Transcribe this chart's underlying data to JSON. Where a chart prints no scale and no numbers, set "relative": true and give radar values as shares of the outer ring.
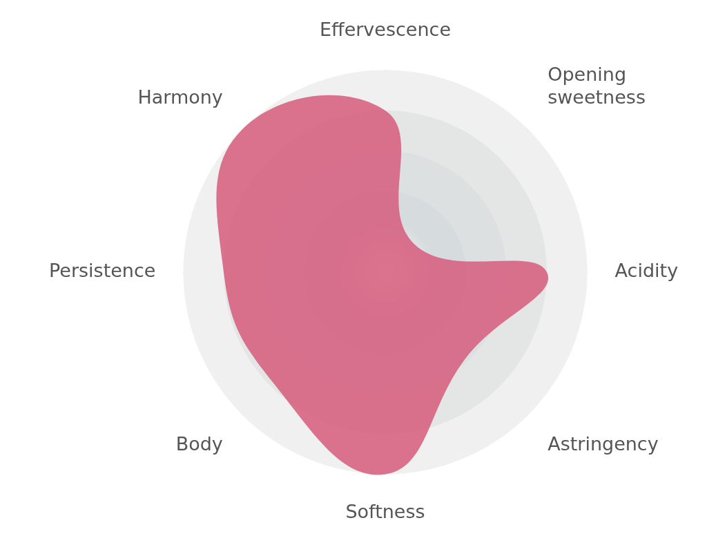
{
  "chart_data": {
    "type": "radar",
    "relative": true,
    "grid": true,
    "legend": false,
    "marker": "none",
    "categories": [
      "Effervescence",
      "Opening\nsweetness",
      "Acidity",
      "Astringency",
      "Softness",
      "Body",
      "Persistence",
      "Harmony"
    ],
    "series": [
      {
        "color": "#d6607f",
        "values": [
          0.8,
          0.2,
          0.8,
          0.58,
          1.0,
          0.78,
          0.8,
          1.0
        ]
      }
    ]
  }
}
